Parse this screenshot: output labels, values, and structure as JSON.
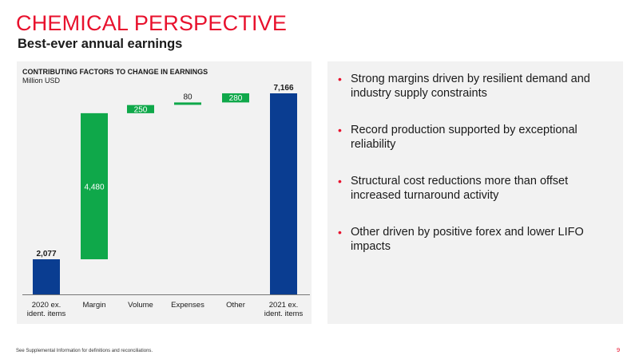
{
  "header": {
    "title": "CHEMICAL PERSPECTIVE",
    "subtitle": "Best-ever annual earnings"
  },
  "chart_panel": {
    "title": "CONTRIBUTING FACTORS TO CHANGE IN EARNINGS",
    "unit": "Million USD"
  },
  "chart_data": {
    "type": "bar",
    "subtype": "waterfall",
    "title": "CONTRIBUTING FACTORS TO CHANGE IN EARNINGS",
    "ylabel": "Million USD",
    "categories": [
      "2020 ex. ident. items",
      "Margin",
      "Volume",
      "Expenses",
      "Other",
      "2021 ex. ident. items"
    ],
    "category_lines": [
      [
        "2020 ex.",
        "ident. items"
      ],
      [
        "Margin"
      ],
      [
        "Volume"
      ],
      [
        "Expenses"
      ],
      [
        "Other"
      ],
      [
        "2021 ex.",
        "ident. items"
      ]
    ],
    "values": [
      2077,
      4480,
      250,
      80,
      280,
      7166
    ],
    "value_labels": [
      "2,077",
      "4,480",
      "250",
      "80",
      "280",
      "7,166"
    ],
    "kinds": [
      "total",
      "increase",
      "increase",
      "increase",
      "increase",
      "total"
    ],
    "ylim": [
      1000,
      7166
    ],
    "grid": false,
    "colors": {
      "total": "#0a3d91",
      "increase": "#0fa84a"
    }
  },
  "bullets": [
    "Strong margins driven by resilient demand and industry supply constraints",
    "Record production supported by exceptional reliability",
    "Structural cost reductions more than offset increased turnaround activity",
    "Other driven by positive forex and lower LIFO impacts"
  ],
  "footer": {
    "note": "See Supplemental Information for definitions and reconciliations.",
    "page": "9"
  },
  "colors": {
    "accent": "#e8112d",
    "panel": "#f2f2f2"
  }
}
